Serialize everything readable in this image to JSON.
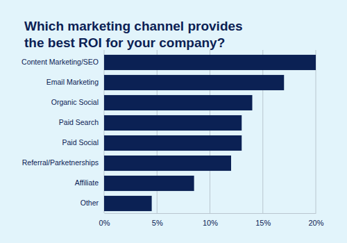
{
  "chart_data": {
    "type": "bar",
    "orientation": "horizontal",
    "title": "Which marketing channel provides\nthe best ROI for your company?",
    "categories": [
      "Content Marketing/SEO",
      "Email Marketing",
      "Organic Social",
      "Paid Search",
      "Paid Social",
      "Referral/Parketnerships",
      "Affiliate",
      "Other"
    ],
    "values": [
      20,
      17,
      14,
      13,
      13,
      12,
      8.5,
      4.5
    ],
    "color": "#0b2154",
    "xlim": [
      0,
      20
    ],
    "xticks": [
      {
        "value": 0,
        "label": "0%"
      },
      {
        "value": 5,
        "label": "5%"
      },
      {
        "value": 10,
        "label": "10%"
      },
      {
        "value": 15,
        "label": "15%"
      },
      {
        "value": 20,
        "label": "20%"
      }
    ],
    "grid": true
  }
}
